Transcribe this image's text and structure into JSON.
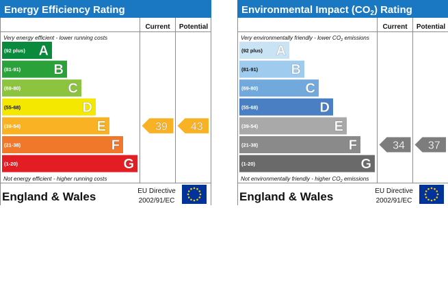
{
  "chart_data": [
    {
      "type": "bar",
      "title": "Energy Efficiency Rating",
      "columns": [
        "Current",
        "Potential"
      ],
      "top_note": "Very energy efficient - lower running costs",
      "bottom_note": "Not energy efficient - higher running costs",
      "bands": [
        {
          "range": "(92 plus)",
          "letter": "A",
          "color": "#0a8a3c"
        },
        {
          "range": "(81-91)",
          "letter": "B",
          "color": "#2ba13a"
        },
        {
          "range": "(69-80)",
          "letter": "C",
          "color": "#8cc43f"
        },
        {
          "range": "(55-68)",
          "letter": "D",
          "color": "#f4e800"
        },
        {
          "range": "(39-54)",
          "letter": "E",
          "color": "#f8b223"
        },
        {
          "range": "(21-38)",
          "letter": "F",
          "color": "#f0782b"
        },
        {
          "range": "(1-20)",
          "letter": "G",
          "color": "#e31d24"
        }
      ],
      "current": {
        "value": 39,
        "band": "E"
      },
      "potential": {
        "value": 43,
        "band": "E"
      },
      "arrow_color": "#f8b223",
      "footer": {
        "region": "England & Wales",
        "directive_line1": "EU Directive",
        "directive_line2": "2002/91/EC"
      }
    },
    {
      "type": "bar",
      "title": "Environmental Impact (CO",
      "title_sub": "2",
      "title_end": ") Rating",
      "columns": [
        "Current",
        "Potential"
      ],
      "top_note": "Very environmentally friendly - lower CO",
      "top_note_sub": "2",
      "top_note_end": " emissions",
      "bottom_note": "Not environmentally friendly - higher CO",
      "bottom_note_sub": "2",
      "bottom_note_end": " emissions",
      "bands": [
        {
          "range": "(92 plus)",
          "letter": "A",
          "color": "#c9e3f5"
        },
        {
          "range": "(81-91)",
          "letter": "B",
          "color": "#9ecbee"
        },
        {
          "range": "(69-80)",
          "letter": "C",
          "color": "#72a9dc"
        },
        {
          "range": "(55-68)",
          "letter": "D",
          "color": "#4a7fc4"
        },
        {
          "range": "(39-54)",
          "letter": "E",
          "color": "#a9a9a9"
        },
        {
          "range": "(21-38)",
          "letter": "F",
          "color": "#8a8a8a"
        },
        {
          "range": "(1-20)",
          "letter": "G",
          "color": "#6a6a6a"
        }
      ],
      "current": {
        "value": 34,
        "band": "F"
      },
      "potential": {
        "value": 37,
        "band": "F"
      },
      "arrow_color": "#7d7d7d",
      "footer": {
        "region": "England & Wales",
        "directive_line1": "EU Directive",
        "directive_line2": "2002/91/EC"
      }
    }
  ],
  "colors": {
    "header": "#1a78c2",
    "flag": "#003399",
    "stars": "#ffcc00"
  }
}
